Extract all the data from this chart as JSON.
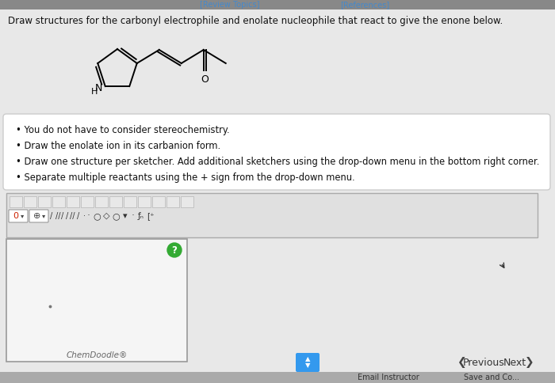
{
  "question_text": "Draw structures for the carbonyl electrophile and enolate nucleophile that react to give the enone below.",
  "bullet_points": [
    "You do not have to consider stereochemistry.",
    "Draw the enolate ion in its carbanion form.",
    "Draw one structure per sketcher. Add additional sketchers using the drop-down menu in the bottom right corner.",
    "Separate multiple reactants using the + sign from the drop-down menu."
  ],
  "chemdoodle_label": "ChemDoodle®",
  "previous_text": "Previous",
  "next_text": "Next",
  "bg_color": "#d0d0d0",
  "page_bg": "#e8e8e8",
  "white": "#ffffff",
  "box_bg": "#f8f8f8",
  "border_color": "#bbbbbb",
  "green_circle_color": "#33aa33",
  "blue_button_color": "#3399ee",
  "link_color": "#4488cc",
  "text_color": "#111111",
  "gray_text": "#666666",
  "toolbar_bg": "#d8d8d8",
  "sketcher_bg": "#f2f2f2",
  "top_bar_color": "#555555"
}
